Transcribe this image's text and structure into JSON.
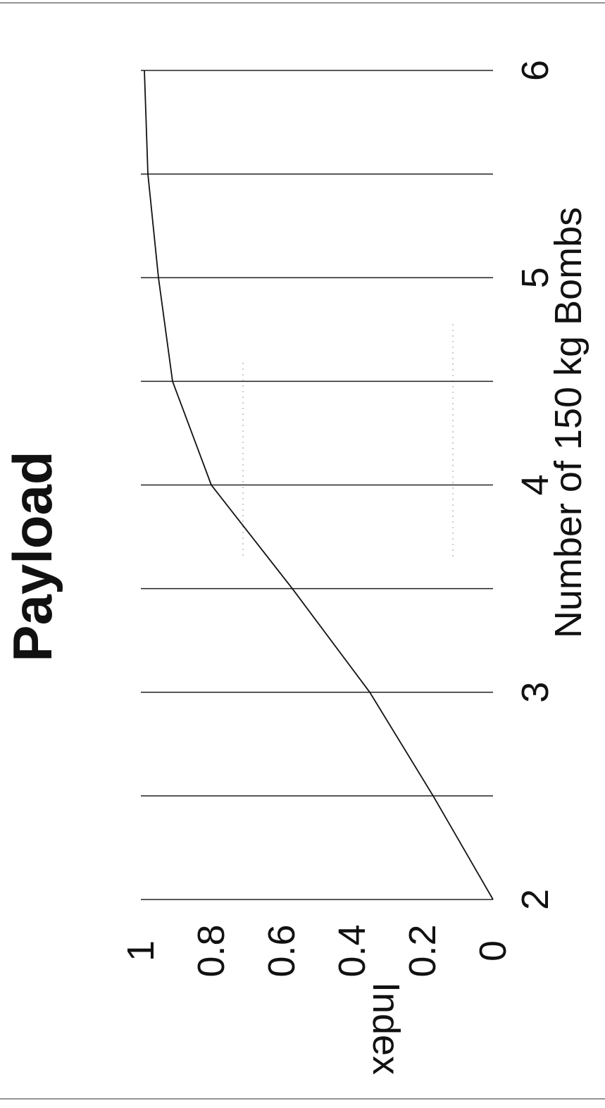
{
  "chart_data": {
    "type": "line",
    "orientation": "rotated-90-ccw",
    "title": "Payload",
    "xlabel": "Number of 150 kg Bombs",
    "ylabel": "Index",
    "xlim": [
      2,
      6
    ],
    "ylim": [
      0,
      1
    ],
    "x_ticks": [
      "2",
      "3",
      "4",
      "5",
      "6"
    ],
    "y_ticks": [
      "0",
      "0.2",
      "0.4",
      "0.6",
      "0.8",
      "1"
    ],
    "gridlines_x": [
      2,
      2.5,
      3,
      3.5,
      4,
      4.5,
      5,
      5.5,
      6
    ],
    "grid": true,
    "series": [
      {
        "x": [
          2,
          2.5,
          3,
          3.5,
          4,
          4.5,
          5,
          5.5,
          6
        ],
        "y": [
          0,
          0.17,
          0.35,
          0.57,
          0.8,
          0.91,
          0.95,
          0.98,
          0.99
        ]
      }
    ]
  }
}
